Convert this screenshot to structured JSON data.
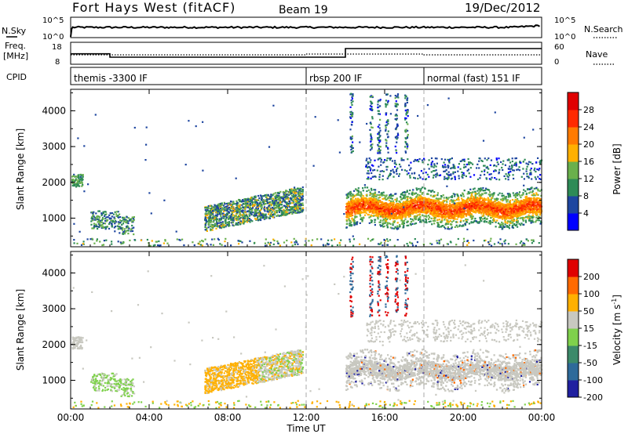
{
  "header": {
    "station": "Fort Hays West (fitACF)",
    "beam": "Beam 19",
    "date": "19/Dec/2012"
  },
  "panels": {
    "nsky": {
      "left_label": "N.Sky",
      "right_label": "N.Search",
      "left_ticks": [
        "10^5",
        "10^0"
      ],
      "right_ticks": [
        "10^5",
        "10^0"
      ]
    },
    "freq": {
      "left_label_1": "Freq.",
      "left_label_2": "[MHz]",
      "right_label": "Nave",
      "left_ticks": [
        "18",
        "8"
      ],
      "right_ticks": [
        "60",
        "0"
      ]
    },
    "cpid": {
      "label": "CPID",
      "modes": [
        {
          "name": "themis -3300 IF",
          "start_hour": 0
        },
        {
          "name": "rbsp 200 IF",
          "start_hour": 12
        },
        {
          "name": "normal (fast) 151 IF",
          "start_hour": 18
        }
      ]
    }
  },
  "chart_data": [
    {
      "type": "heatmap",
      "title": "",
      "xlabel": "",
      "ylabel": "Slant Range [km]",
      "xlim": [
        0,
        24
      ],
      "ylim": [
        200,
        4600
      ],
      "yticks": [
        1000,
        2000,
        3000,
        4000
      ],
      "colorbar": {
        "label": "Power [dB]",
        "ticks": [
          "4",
          "8",
          "12",
          "16",
          "20",
          "24",
          "28"
        ],
        "range": [
          0,
          32
        ],
        "colors": [
          "#0000ff",
          "#1e46a0",
          "#2e8b57",
          "#6ab04c",
          "#ffb000",
          "#ff7b00",
          "#ff2a00",
          "#e00000"
        ]
      },
      "features": [
        {
          "hour_start": 0.0,
          "hour_end": 0.6,
          "range_center": 2050,
          "level": 10
        },
        {
          "hour_start": 1.0,
          "hour_end": 3.2,
          "range_center": 950,
          "level": 9
        },
        {
          "hour_start": 6.8,
          "hour_end": 11.8,
          "range_center": 1250,
          "level": 12
        },
        {
          "hour_start": 14.0,
          "hour_end": 24.0,
          "range_center": 1350,
          "level": 22
        }
      ]
    },
    {
      "type": "heatmap",
      "title": "",
      "xlabel": "Time UT",
      "ylabel": "Slant Range [km]",
      "xlim": [
        0,
        24
      ],
      "ylim": [
        200,
        4600
      ],
      "yticks": [
        1000,
        2000,
        3000,
        4000
      ],
      "xticks": [
        "00:00",
        "04:00",
        "08:00",
        "12:00",
        "16:00",
        "20:00",
        "00:00"
      ],
      "colorbar": {
        "label": "Velocity [m s^-1]",
        "ticks": [
          "200",
          "100",
          "50",
          "15",
          "-15",
          "-50",
          "-100",
          "-200"
        ],
        "colors": [
          "#2020a0",
          "#2e6a9a",
          "#3c8a6a",
          "#7fd14c",
          "#c8c8c0",
          "#ffb000",
          "#ff6a00",
          "#e00000"
        ]
      },
      "features": [
        {
          "hour_start": 0.0,
          "hour_end": 0.6,
          "range_center": 2050,
          "velocity": 0
        },
        {
          "hour_start": 1.0,
          "hour_end": 3.2,
          "range_center": 950,
          "velocity": 30
        },
        {
          "hour_start": 6.8,
          "hour_end": 11.8,
          "range_center": 1050,
          "velocity": -40
        },
        {
          "hour_start": 14.0,
          "hour_end": 24.0,
          "range_center": 1500,
          "velocity": 0
        }
      ]
    }
  ]
}
